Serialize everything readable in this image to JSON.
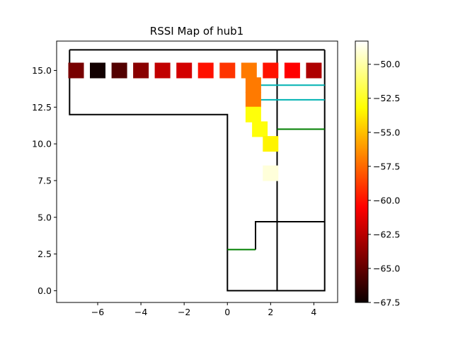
{
  "chart_data": {
    "type": "heatmap",
    "title": "RSSI Map of hub1",
    "xlim": [
      -7.9,
      5.1
    ],
    "ylim": [
      -0.8,
      17.0
    ],
    "x_ticks": [
      -6,
      -4,
      -2,
      0,
      2,
      4
    ],
    "x_tick_labels": [
      "−6",
      "−4",
      "−2",
      "0",
      "2",
      "4"
    ],
    "y_ticks": [
      0.0,
      2.5,
      5.0,
      7.5,
      10.0,
      12.5,
      15.0
    ],
    "y_tick_labels": [
      "0.0",
      "2.5",
      "5.0",
      "7.5",
      "10.0",
      "12.5",
      "15.0"
    ],
    "colorbar": {
      "colormap": "hot",
      "vmin": -67.5,
      "vmax": -48.3,
      "ticks": [
        -50.0,
        -52.5,
        -55.0,
        -57.5,
        -60.0,
        -62.5,
        -65.0,
        -67.5
      ],
      "tick_labels": [
        "−50.0",
        "−52.5",
        "−55.0",
        "−57.5",
        "−60.0",
        "−62.5",
        "−65.0",
        "−67.5"
      ]
    },
    "points": [
      {
        "x": -7.0,
        "y": 15.0,
        "rssi": -64.5
      },
      {
        "x": -6.0,
        "y": 15.0,
        "rssi": -67.3
      },
      {
        "x": -5.0,
        "y": 15.0,
        "rssi": -65.5
      },
      {
        "x": -4.0,
        "y": 15.0,
        "rssi": -64.0
      },
      {
        "x": -3.0,
        "y": 15.0,
        "rssi": -62.5
      },
      {
        "x": -2.0,
        "y": 15.0,
        "rssi": -62.0
      },
      {
        "x": -1.0,
        "y": 15.0,
        "rssi": -60.0
      },
      {
        "x": 0.0,
        "y": 15.0,
        "rssi": -59.0
      },
      {
        "x": 1.0,
        "y": 15.0,
        "rssi": -57.0
      },
      {
        "x": 2.0,
        "y": 15.0,
        "rssi": -60.0
      },
      {
        "x": 3.0,
        "y": 15.0,
        "rssi": -60.5
      },
      {
        "x": 4.0,
        "y": 15.0,
        "rssi": -63.0
      },
      {
        "x": 1.2,
        "y": 14.0,
        "rssi": -57.0
      },
      {
        "x": 1.2,
        "y": 13.0,
        "rssi": -57.0
      },
      {
        "x": 1.2,
        "y": 12.0,
        "rssi": -53.0
      },
      {
        "x": 1.5,
        "y": 11.0,
        "rssi": -53.0
      },
      {
        "x": 2.0,
        "y": 10.0,
        "rssi": -53.5
      },
      {
        "x": 2.0,
        "y": 8.0,
        "rssi": -49.0
      }
    ],
    "floorplan": [
      {
        "color": "#000000",
        "pts": [
          [
            -7.3,
            16.4
          ],
          [
            4.5,
            16.4
          ]
        ]
      },
      {
        "color": "#000000",
        "pts": [
          [
            -7.3,
            16.4
          ],
          [
            -7.3,
            12.0
          ],
          [
            0.0,
            12.0
          ],
          [
            0.0,
            0.0
          ],
          [
            4.5,
            0.0
          ],
          [
            4.5,
            16.4
          ]
        ]
      },
      {
        "color": "#000000",
        "pts": [
          [
            2.3,
            16.4
          ],
          [
            2.3,
            0.0
          ]
        ]
      },
      {
        "color": "#000000",
        "pts": [
          [
            1.3,
            2.8
          ],
          [
            1.3,
            4.7
          ],
          [
            4.5,
            4.7
          ]
        ]
      },
      {
        "color": "#00b2b2",
        "pts": [
          [
            1.5,
            14.0
          ],
          [
            4.5,
            14.0
          ]
        ]
      },
      {
        "color": "#00b2b2",
        "pts": [
          [
            1.5,
            14.0
          ],
          [
            1.5,
            13.0
          ],
          [
            4.5,
            13.0
          ]
        ]
      },
      {
        "color": "#007f00",
        "pts": [
          [
            2.3,
            11.0
          ],
          [
            4.5,
            11.0
          ]
        ]
      },
      {
        "color": "#007f00",
        "pts": [
          [
            0.0,
            2.8
          ],
          [
            1.3,
            2.8
          ]
        ]
      }
    ]
  }
}
